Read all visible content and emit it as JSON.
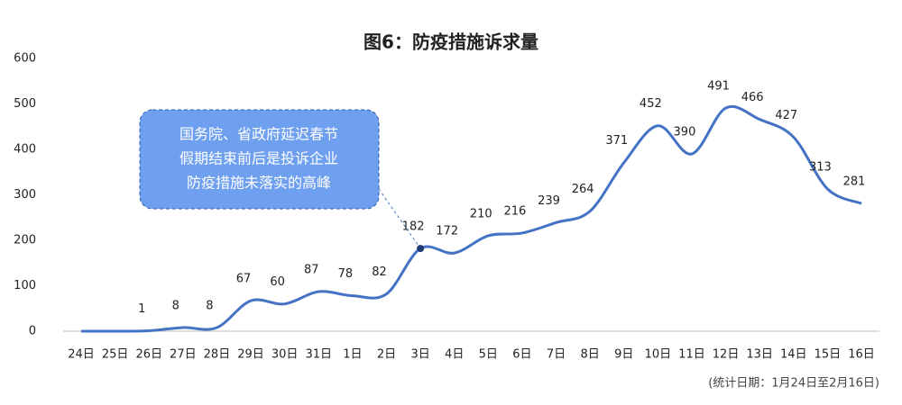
{
  "chart_data": {
    "type": "line",
    "title": "图6：防疫措施诉求量",
    "categories": [
      "24日",
      "25日",
      "26日",
      "27日",
      "28日",
      "29日",
      "30日",
      "31日",
      "1日",
      "2日",
      "3日",
      "4日",
      "5日",
      "6日",
      "7日",
      "8日",
      "9日",
      "10日",
      "11日",
      "12日",
      "13日",
      "14日",
      "15日",
      "16日"
    ],
    "series": [
      {
        "name": "防疫措施诉求量",
        "color": "#4472c4",
        "values": [
          0,
          0,
          1,
          8,
          8,
          67,
          60,
          87,
          78,
          82,
          182,
          172,
          210,
          216,
          239,
          264,
          371,
          452,
          390,
          491,
          466,
          427,
          313,
          281
        ]
      }
    ],
    "ylim": [
      0,
      600
    ],
    "yticks": [
      0,
      100,
      200,
      300,
      400,
      500,
      600
    ],
    "grid": false,
    "annotation": {
      "lines": [
        "国务院、省政府延迟春节",
        "假期结束前后是投诉企业",
        "防疫措施未落实的高峰"
      ],
      "point": 10
    },
    "footnote": "(统计日期：1月24日至2月16日)"
  }
}
